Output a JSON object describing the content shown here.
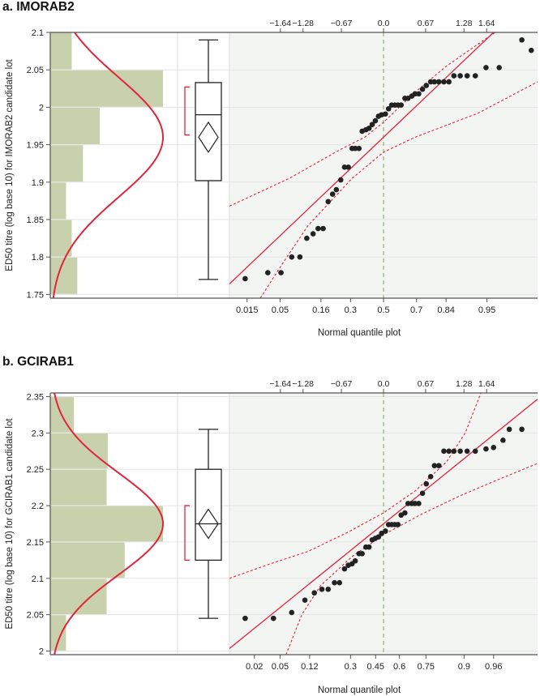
{
  "colors": {
    "histogram_bar": "#c9d1ac",
    "normal_curve": "#e0253a",
    "qq_background": "#f3f5f3",
    "points": "#222222",
    "median_line": "#a8c08c",
    "bracket": "#e0253a",
    "axis": "#555555"
  },
  "chart_data": [
    {
      "type": "scatter",
      "panel_label": "a. IMORAB2",
      "ylabel": "ED50 titre (log base 10) for IMORAB2 candidate lot",
      "xlabel": "Normal quantile plot",
      "ylim": [
        1.745,
        2.1
      ],
      "y_ticks": [
        "1.75",
        "1.8",
        "1.85",
        "1.9",
        "1.95",
        "2",
        "2.05",
        "2.1"
      ],
      "top_ticks": [
        "-1.64",
        "-1.28",
        "-0.67",
        "0.0",
        "0.67",
        "1.28",
        "1.64"
      ],
      "bottom_ticks": [
        "0.015",
        "0.05",
        "0.16",
        "0.3",
        "0.5",
        "0.7",
        "0.84",
        "0.95"
      ],
      "histogram": {
        "bins": [
          [
            1.75,
            1.8
          ],
          [
            1.8,
            1.85
          ],
          [
            1.85,
            1.9
          ],
          [
            1.9,
            1.95
          ],
          [
            1.95,
            2.0
          ],
          [
            2.0,
            2.05
          ],
          [
            2.05,
            2.1
          ]
        ],
        "relative_height": [
          0.24,
          0.19,
          0.14,
          0.29,
          0.44,
          1.0,
          0.19
        ]
      },
      "normal_curve": {
        "mean": 1.96,
        "sd": 0.08
      },
      "boxplot": {
        "min": 1.77,
        "q1": 1.902,
        "median": 1.99,
        "q3": 2.033,
        "max": 2.09,
        "mean": 1.96,
        "ci_low": 1.94,
        "ci_high": 1.98,
        "bracket_low": 1.963,
        "bracket_high": 2.027
      },
      "qq_points": [
        [
          -2.2,
          1.771
        ],
        [
          -1.84,
          1.779
        ],
        [
          -1.63,
          1.779
        ],
        [
          -1.46,
          1.8
        ],
        [
          -1.33,
          1.8
        ],
        [
          -1.22,
          1.825
        ],
        [
          -1.12,
          1.831
        ],
        [
          -1.04,
          1.838
        ],
        [
          -0.96,
          1.838
        ],
        [
          -0.88,
          1.874
        ],
        [
          -0.81,
          1.884
        ],
        [
          -0.75,
          1.89
        ],
        [
          -0.68,
          1.903
        ],
        [
          -0.62,
          1.92
        ],
        [
          -0.56,
          1.92
        ],
        [
          -0.5,
          1.945
        ],
        [
          -0.45,
          1.945
        ],
        [
          -0.39,
          1.945
        ],
        [
          -0.34,
          1.968
        ],
        [
          -0.28,
          1.97
        ],
        [
          -0.23,
          1.972
        ],
        [
          -0.18,
          1.977
        ],
        [
          -0.13,
          1.982
        ],
        [
          -0.08,
          1.988
        ],
        [
          -0.03,
          1.99
        ],
        [
          0.03,
          1.991
        ],
        [
          0.08,
          1.998
        ],
        [
          0.13,
          2.003
        ],
        [
          0.18,
          2.003
        ],
        [
          0.23,
          2.003
        ],
        [
          0.28,
          2.003
        ],
        [
          0.34,
          2.012
        ],
        [
          0.39,
          2.012
        ],
        [
          0.45,
          2.015
        ],
        [
          0.5,
          2.018
        ],
        [
          0.56,
          2.018
        ],
        [
          0.62,
          2.024
        ],
        [
          0.68,
          2.029
        ],
        [
          0.75,
          2.034
        ],
        [
          0.81,
          2.034
        ],
        [
          0.88,
          2.034
        ],
        [
          0.96,
          2.034
        ],
        [
          1.04,
          2.034
        ],
        [
          1.12,
          2.042
        ],
        [
          1.22,
          2.042
        ],
        [
          1.33,
          2.042
        ],
        [
          1.46,
          2.042
        ],
        [
          1.63,
          2.053
        ],
        [
          1.84,
          2.053
        ],
        [
          2.2,
          2.09
        ],
        [
          2.35,
          2.076
        ]
      ],
      "fit_line": {
        "intercept": 1.96,
        "slope": 0.08
      },
      "confidence_bands": {
        "upper": [
          [
            -2.45,
            1.868
          ],
          [
            -1.5,
            1.905
          ],
          [
            -0.7,
            1.943
          ],
          [
            -0.3,
            1.96
          ],
          [
            0.0,
            1.98
          ],
          [
            0.5,
            2.02
          ],
          [
            1.0,
            2.055
          ],
          [
            1.6,
            2.09
          ],
          [
            1.96,
            2.11
          ]
        ],
        "lower": [
          [
            -1.96,
            1.745
          ],
          [
            -1.6,
            1.792
          ],
          [
            -1.2,
            1.842
          ],
          [
            -0.8,
            1.878
          ],
          [
            -0.5,
            1.905
          ],
          [
            0.0,
            1.94
          ],
          [
            0.5,
            1.96
          ],
          [
            1.5,
            1.992
          ],
          [
            2.45,
            2.034
          ]
        ]
      }
    },
    {
      "type": "scatter",
      "panel_label": "b. GCIRAB1",
      "ylabel": "ED50 titre (log base 10) for GCIRAB1 candidate lot",
      "xlabel": "Normal quantile plot",
      "ylim": [
        1.995,
        2.355
      ],
      "y_ticks": [
        "2",
        "2.05",
        "2.1",
        "2.15",
        "2.2",
        "2.25",
        "2.3",
        "2.35"
      ],
      "top_ticks": [
        "-1.64",
        "-1.28",
        "-0.67",
        "0.0",
        "0.67",
        "1.28",
        "1.64"
      ],
      "bottom_ticks": [
        "0.02",
        "0.05",
        "0.12",
        "0.3",
        "0.45",
        "0.6",
        "0.75",
        "0.9",
        "0.96"
      ],
      "histogram": {
        "bins": [
          [
            2.0,
            2.05
          ],
          [
            2.05,
            2.1
          ],
          [
            2.1,
            2.15
          ],
          [
            2.15,
            2.2
          ],
          [
            2.2,
            2.25
          ],
          [
            2.25,
            2.3
          ],
          [
            2.3,
            2.35
          ]
        ],
        "relative_height": [
          0.14,
          0.5,
          0.66,
          1.0,
          0.5,
          0.51,
          0.21
        ]
      },
      "normal_curve": {
        "mean": 2.175,
        "sd": 0.07
      },
      "boxplot": {
        "min": 2.045,
        "q1": 2.125,
        "median": 2.175,
        "q3": 2.25,
        "max": 2.305,
        "mean": 2.175,
        "ci_low": 2.155,
        "ci_high": 2.195,
        "bracket_low": 2.125,
        "bracket_high": 2.2
      },
      "qq_points": [
        [
          -2.2,
          2.045
        ],
        [
          -1.75,
          2.045
        ],
        [
          -1.46,
          2.053
        ],
        [
          -1.25,
          2.07
        ],
        [
          -1.1,
          2.08
        ],
        [
          -0.98,
          2.085
        ],
        [
          -0.88,
          2.085
        ],
        [
          -0.78,
          2.094
        ],
        [
          -0.7,
          2.094
        ],
        [
          -0.62,
          2.113
        ],
        [
          -0.56,
          2.118
        ],
        [
          -0.5,
          2.12
        ],
        [
          -0.45,
          2.124
        ],
        [
          -0.39,
          2.134
        ],
        [
          -0.34,
          2.134
        ],
        [
          -0.28,
          2.143
        ],
        [
          -0.23,
          2.143
        ],
        [
          -0.18,
          2.153
        ],
        [
          -0.13,
          2.155
        ],
        [
          -0.08,
          2.157
        ],
        [
          -0.03,
          2.162
        ],
        [
          0.03,
          2.165
        ],
        [
          0.08,
          2.174
        ],
        [
          0.13,
          2.174
        ],
        [
          0.18,
          2.174
        ],
        [
          0.23,
          2.174
        ],
        [
          0.28,
          2.187
        ],
        [
          0.34,
          2.19
        ],
        [
          0.39,
          2.203
        ],
        [
          0.45,
          2.203
        ],
        [
          0.5,
          2.203
        ],
        [
          0.56,
          2.203
        ],
        [
          0.62,
          2.217
        ],
        [
          0.68,
          2.23
        ],
        [
          0.75,
          2.24
        ],
        [
          0.81,
          2.255
        ],
        [
          0.88,
          2.255
        ],
        [
          0.96,
          2.275
        ],
        [
          1.04,
          2.275
        ],
        [
          1.12,
          2.275
        ],
        [
          1.22,
          2.275
        ],
        [
          1.33,
          2.275
        ],
        [
          1.46,
          2.275
        ],
        [
          1.63,
          2.278
        ],
        [
          1.75,
          2.28
        ],
        [
          1.9,
          2.29
        ],
        [
          2.0,
          2.305
        ],
        [
          2.2,
          2.305
        ],
        [
          2.55,
          2.305
        ]
      ],
      "fit_line": {
        "intercept": 2.175,
        "slope": 0.07
      },
      "confidence_bands": {
        "upper": [
          [
            -2.45,
            2.1
          ],
          [
            -1.8,
            2.12
          ],
          [
            -1.2,
            2.137
          ],
          [
            -0.6,
            2.162
          ],
          [
            0.0,
            2.19
          ],
          [
            0.5,
            2.22
          ],
          [
            1.0,
            2.26
          ],
          [
            1.3,
            2.3
          ],
          [
            1.55,
            2.355
          ]
        ],
        "lower": [
          [
            -1.55,
            1.995
          ],
          [
            -1.3,
            2.05
          ],
          [
            -1.0,
            2.09
          ],
          [
            -0.5,
            2.13
          ],
          [
            0.0,
            2.16
          ],
          [
            0.6,
            2.188
          ],
          [
            1.2,
            2.213
          ],
          [
            1.8,
            2.235
          ],
          [
            2.45,
            2.258
          ]
        ]
      }
    }
  ]
}
